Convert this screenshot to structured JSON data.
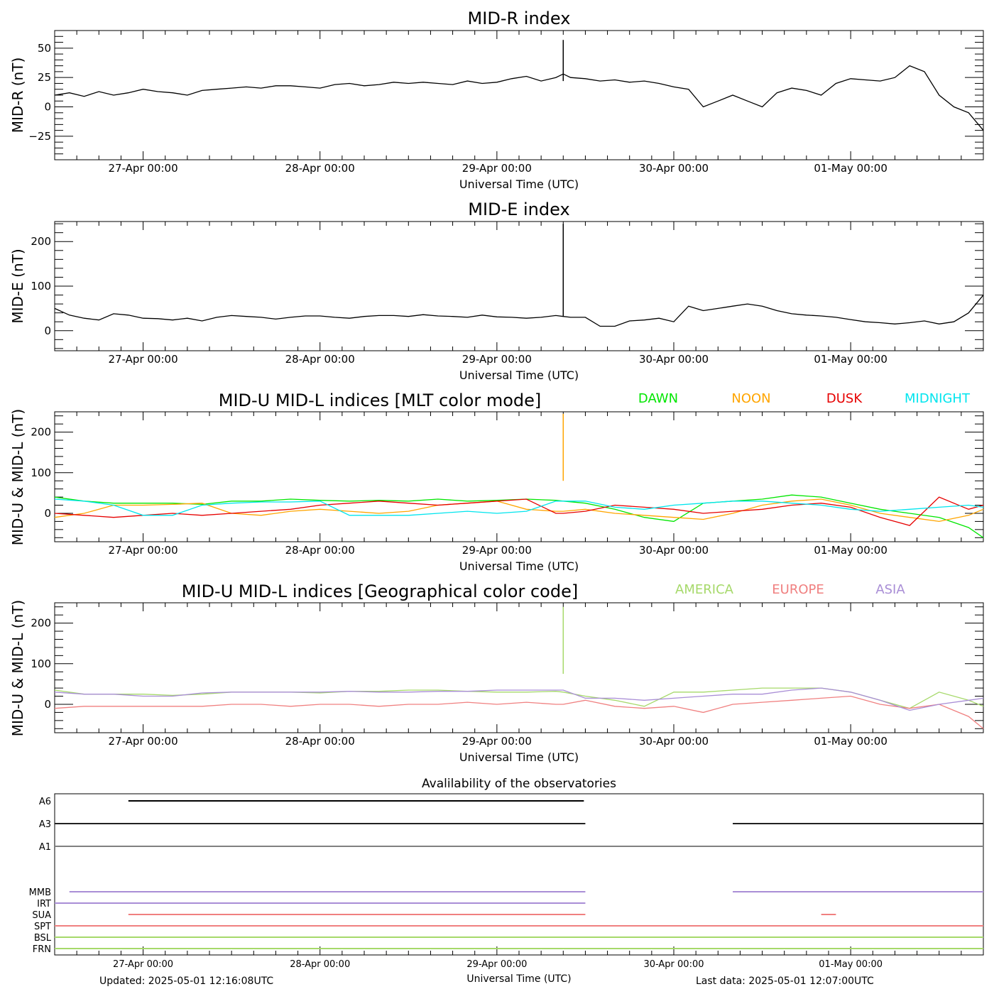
{
  "footer": {
    "updated": "Updated: 2025-05-01 12:16:08UTC",
    "last_data": "Last data: 2025-05-01 12:07:00UTC"
  },
  "chart_data": [
    {
      "id": "mid-r",
      "type": "line",
      "title": "MID-R index",
      "xlabel": "Universal Time (UTC)",
      "ylabel": "MID-R (nT)",
      "ylim": [
        -45,
        65
      ],
      "xlim_hours": [
        -12,
        38
      ],
      "x_tick_labels": [
        "27-Apr 00:00",
        "28-Apr 00:00",
        "29-Apr 00:00",
        "30-Apr 00:00",
        "01-May 00:00"
      ],
      "y_tick_labels": [
        "50",
        "25",
        "0",
        "−25"
      ],
      "y_tick_values": [
        50,
        25,
        0,
        -25
      ],
      "x_unit": "hours since 27-Apr 00:00 UTC",
      "series": [
        {
          "color": "#000000",
          "x": [
            -12,
            -10,
            -8,
            -6,
            -4,
            -2,
            0,
            2,
            4,
            6,
            8,
            10,
            12,
            14,
            16,
            18,
            20,
            22,
            24,
            26,
            28,
            30,
            32,
            34,
            36,
            38,
            40,
            42,
            44,
            46,
            48,
            50,
            52,
            54,
            56,
            57,
            58,
            60,
            62,
            64,
            66,
            68,
            70,
            72,
            74,
            76,
            78,
            80,
            82,
            84,
            86,
            88,
            90,
            92,
            94,
            96,
            98,
            100,
            102,
            104,
            106,
            108,
            110,
            112,
            114
          ],
          "y": [
            10,
            12,
            9,
            13,
            10,
            12,
            15,
            13,
            12,
            10,
            14,
            15,
            16,
            17,
            16,
            18,
            18,
            17,
            16,
            19,
            20,
            18,
            19,
            21,
            20,
            21,
            20,
            19,
            22,
            20,
            21,
            24,
            26,
            22,
            25,
            28,
            25,
            24,
            22,
            23,
            21,
            22,
            20,
            17,
            15,
            0,
            5,
            10,
            5,
            0,
            12,
            16,
            14,
            10,
            20,
            24,
            23,
            22,
            25,
            35,
            30,
            10,
            0,
            -5,
            -20
          ]
        }
      ],
      "spike": {
        "x": 57,
        "y_from": 22,
        "y_to": 57,
        "color": "#000000"
      }
    },
    {
      "id": "mid-e",
      "type": "line",
      "title": "MID-E index",
      "xlabel": "Universal Time (UTC)",
      "ylabel": "MID-E (nT)",
      "ylim": [
        -45,
        245
      ],
      "xlim_hours": [
        -12,
        38
      ],
      "x_tick_labels": [
        "27-Apr 00:00",
        "28-Apr 00:00",
        "29-Apr 00:00",
        "30-Apr 00:00",
        "01-May 00:00"
      ],
      "y_tick_labels": [
        "200",
        "100",
        "0"
      ],
      "y_tick_values": [
        200,
        100,
        0
      ],
      "x_unit": "hours since 27-Apr 00:00 UTC",
      "series": [
        {
          "color": "#000000",
          "x": [
            -12,
            -10,
            -8,
            -6,
            -4,
            -2,
            0,
            2,
            4,
            6,
            8,
            10,
            12,
            14,
            16,
            18,
            20,
            22,
            24,
            26,
            28,
            30,
            32,
            34,
            36,
            38,
            40,
            42,
            44,
            46,
            48,
            50,
            52,
            54,
            56,
            57,
            58,
            60,
            62,
            64,
            66,
            68,
            70,
            72,
            74,
            76,
            78,
            80,
            82,
            84,
            86,
            88,
            90,
            92,
            94,
            96,
            98,
            100,
            102,
            104,
            106,
            108,
            110,
            112,
            114
          ],
          "y": [
            50,
            35,
            28,
            24,
            38,
            35,
            28,
            27,
            24,
            28,
            22,
            30,
            34,
            32,
            30,
            26,
            30,
            33,
            33,
            30,
            28,
            32,
            34,
            34,
            32,
            36,
            33,
            32,
            30,
            35,
            31,
            30,
            28,
            30,
            34,
            32,
            30,
            30,
            10,
            10,
            22,
            24,
            28,
            20,
            55,
            45,
            50,
            55,
            60,
            55,
            45,
            38,
            35,
            33,
            30,
            25,
            20,
            18,
            15,
            18,
            22,
            15,
            20,
            40,
            80
          ]
        }
      ],
      "spike": {
        "x": 57,
        "y_from": 32,
        "y_to": 240,
        "color": "#000000"
      }
    },
    {
      "id": "mid-u-l-mlt",
      "type": "line",
      "title": "MID-U MID-L   indices [MLT color mode]",
      "xlabel": "Universal Time (UTC)",
      "ylabel": "MID-U & MID-L (nT)",
      "ylim": [
        -70,
        250
      ],
      "xlim_hours": [
        -12,
        38
      ],
      "x_tick_labels": [
        "27-Apr 00:00",
        "28-Apr 00:00",
        "29-Apr 00:00",
        "30-Apr 00:00",
        "01-May 00:00"
      ],
      "y_tick_labels": [
        "200",
        "100",
        "0"
      ],
      "y_tick_values": [
        200,
        100,
        0
      ],
      "x_unit": "hours since 27-Apr 00:00 UTC",
      "legend": [
        {
          "label": "DAWN",
          "color": "#00e600"
        },
        {
          "label": "NOON",
          "color": "#ffa500"
        },
        {
          "label": "DUSK",
          "color": "#e60000"
        },
        {
          "label": "MIDNIGHT",
          "color": "#00e5ee"
        }
      ],
      "series": [
        {
          "name": "DAWN",
          "color": "#00e600",
          "x": [
            -12,
            -8,
            -4,
            0,
            4,
            8,
            12,
            16,
            20,
            24,
            28,
            32,
            36,
            40,
            44,
            48,
            52,
            56,
            57,
            60,
            64,
            68,
            72,
            76,
            80,
            84,
            88,
            92,
            96,
            100,
            104,
            108,
            112,
            114
          ],
          "y": [
            40,
            30,
            25,
            25,
            25,
            22,
            30,
            30,
            35,
            32,
            30,
            32,
            30,
            35,
            30,
            32,
            35,
            32,
            30,
            25,
            10,
            -10,
            -20,
            25,
            30,
            35,
            45,
            40,
            25,
            10,
            0,
            -10,
            -35,
            -60
          ]
        },
        {
          "name": "NOON",
          "color": "#ffa500",
          "x": [
            -12,
            -8,
            -4,
            0,
            4,
            8,
            12,
            16,
            20,
            24,
            28,
            32,
            36,
            40,
            44,
            48,
            52,
            56,
            57,
            60,
            64,
            68,
            72,
            76,
            80,
            84,
            88,
            92,
            96,
            100,
            104,
            108,
            112,
            114
          ],
          "y": [
            -10,
            0,
            20,
            20,
            22,
            25,
            0,
            -5,
            5,
            10,
            5,
            0,
            5,
            20,
            25,
            30,
            10,
            5,
            5,
            10,
            0,
            -5,
            -10,
            -15,
            0,
            20,
            30,
            35,
            20,
            0,
            -10,
            -20,
            -5,
            10
          ]
        },
        {
          "name": "DUSK",
          "color": "#e60000",
          "x": [
            -12,
            -8,
            -4,
            0,
            4,
            8,
            12,
            16,
            20,
            24,
            28,
            32,
            36,
            40,
            44,
            48,
            52,
            56,
            57,
            60,
            64,
            68,
            72,
            76,
            80,
            84,
            88,
            92,
            96,
            100,
            104,
            108,
            112,
            114
          ],
          "y": [
            0,
            -5,
            -10,
            -5,
            0,
            -5,
            0,
            5,
            10,
            20,
            25,
            30,
            25,
            20,
            25,
            30,
            35,
            0,
            0,
            5,
            20,
            15,
            10,
            0,
            5,
            10,
            20,
            25,
            15,
            -10,
            -30,
            40,
            10,
            20
          ]
        },
        {
          "name": "MIDNIGHT",
          "color": "#00e5ee",
          "x": [
            -12,
            -8,
            -4,
            0,
            4,
            8,
            12,
            16,
            20,
            24,
            28,
            32,
            36,
            40,
            44,
            48,
            52,
            56,
            57,
            60,
            64,
            68,
            72,
            76,
            80,
            84,
            88,
            92,
            96,
            100,
            104,
            108,
            112,
            114
          ],
          "y": [
            35,
            30,
            20,
            -5,
            -5,
            20,
            25,
            28,
            28,
            30,
            -5,
            -5,
            -5,
            0,
            5,
            0,
            5,
            30,
            30,
            30,
            15,
            10,
            20,
            25,
            30,
            30,
            25,
            20,
            10,
            5,
            10,
            15,
            20,
            15
          ]
        }
      ],
      "spike": {
        "x": 57,
        "y_from": 80,
        "y_to": 245,
        "color": "#ffa500"
      }
    },
    {
      "id": "mid-u-l-geo",
      "type": "line",
      "title": "MID-U MID-L   indices [Geographical color code]",
      "xlabel": "Universal Time (UTC)",
      "ylabel": "MID-U & MID-L (nT)",
      "ylim": [
        -70,
        250
      ],
      "xlim_hours": [
        -12,
        38
      ],
      "x_tick_labels": [
        "27-Apr 00:00",
        "28-Apr 00:00",
        "29-Apr 00:00",
        "30-Apr 00:00",
        "01-May 00:00"
      ],
      "y_tick_labels": [
        "200",
        "100",
        "0"
      ],
      "y_tick_values": [
        200,
        100,
        0
      ],
      "x_unit": "hours since 27-Apr 00:00 UTC",
      "legend": [
        {
          "label": "AMERICA",
          "color": "#a6d96a"
        },
        {
          "label": "EUROPE",
          "color": "#f08080"
        },
        {
          "label": "ASIA",
          "color": "#a98ed6"
        }
      ],
      "series": [
        {
          "name": "AMERICA",
          "color": "#a6d96a",
          "x": [
            -12,
            -8,
            -4,
            0,
            4,
            8,
            12,
            16,
            20,
            24,
            28,
            32,
            36,
            40,
            44,
            48,
            52,
            56,
            57,
            60,
            64,
            68,
            72,
            76,
            80,
            84,
            88,
            92,
            96,
            100,
            104,
            108,
            112,
            114
          ],
          "y": [
            35,
            25,
            25,
            25,
            22,
            25,
            30,
            30,
            30,
            28,
            32,
            32,
            35,
            35,
            32,
            30,
            30,
            32,
            30,
            20,
            10,
            -5,
            30,
            30,
            35,
            40,
            40,
            40,
            30,
            10,
            -10,
            30,
            10,
            -5
          ]
        },
        {
          "name": "EUROPE",
          "color": "#f08080",
          "x": [
            -12,
            -8,
            -4,
            0,
            4,
            8,
            12,
            16,
            20,
            24,
            28,
            32,
            36,
            40,
            44,
            48,
            52,
            56,
            57,
            60,
            64,
            68,
            72,
            76,
            80,
            84,
            88,
            92,
            96,
            100,
            104,
            108,
            112,
            114
          ],
          "y": [
            -10,
            -5,
            -5,
            -5,
            -5,
            -5,
            0,
            0,
            -5,
            0,
            0,
            -5,
            0,
            0,
            5,
            0,
            5,
            0,
            0,
            10,
            -5,
            -10,
            -5,
            -20,
            0,
            5,
            10,
            15,
            20,
            0,
            -10,
            0,
            -30,
            -60
          ]
        },
        {
          "name": "ASIA",
          "color": "#a98ed6",
          "x": [
            -12,
            -8,
            -4,
            0,
            4,
            8,
            12,
            16,
            20,
            24,
            28,
            32,
            36,
            40,
            44,
            48,
            52,
            56,
            57,
            60,
            64,
            68,
            72,
            76,
            80,
            84,
            88,
            92,
            96,
            100,
            104,
            108,
            112,
            114
          ],
          "y": [
            30,
            25,
            25,
            20,
            20,
            28,
            30,
            30,
            30,
            30,
            32,
            30,
            30,
            32,
            32,
            35,
            35,
            35,
            35,
            15,
            15,
            10,
            15,
            20,
            25,
            25,
            35,
            40,
            30,
            10,
            -15,
            0,
            10,
            15
          ]
        }
      ],
      "spike": {
        "x": 57,
        "y_from": 75,
        "y_to": 240,
        "color": "#a6d96a"
      }
    },
    {
      "id": "availability",
      "type": "timeline",
      "title": "Avalilability of the observatories",
      "xlabel": "Universal Time (UTC)",
      "xlim_hours": [
        -12,
        38
      ],
      "x_tick_labels": [
        "27-Apr 00:00",
        "28-Apr 00:00",
        "29-Apr 00:00",
        "30-Apr 00:00",
        "01-May 00:00"
      ],
      "x_unit": "hours since 27-Apr 00:00 UTC",
      "rows": [
        {
          "label": "A6",
          "color": "#000000",
          "segments": [
            [
              -2,
              59.8
            ]
          ]
        },
        {
          "label": "A3",
          "color": "#222222",
          "segments": [
            [
              -12,
              60
            ],
            [
              80,
              114
            ]
          ]
        },
        {
          "label": "A1",
          "color": "#808080",
          "segments": [
            [
              -12,
              114
            ]
          ]
        },
        {
          "label": "MMB",
          "color": "#a98ed6",
          "segments": [
            [
              -10,
              60
            ],
            [
              80,
              114
            ]
          ]
        },
        {
          "label": "IRT",
          "color": "#a98ed6",
          "segments": [
            [
              -12,
              60
            ]
          ]
        },
        {
          "label": "SUA",
          "color": "#f08080",
          "segments": [
            [
              -2,
              60
            ],
            [
              92,
              94
            ]
          ]
        },
        {
          "label": "SPT",
          "color": "#f08080",
          "segments": [
            [
              -12,
              114
            ]
          ]
        },
        {
          "label": "BSL",
          "color": "#a6d96a",
          "segments": [
            [
              -12,
              114
            ]
          ]
        },
        {
          "label": "FRN",
          "color": "#a6d96a",
          "segments": [
            [
              -12,
              114
            ]
          ]
        }
      ]
    }
  ]
}
